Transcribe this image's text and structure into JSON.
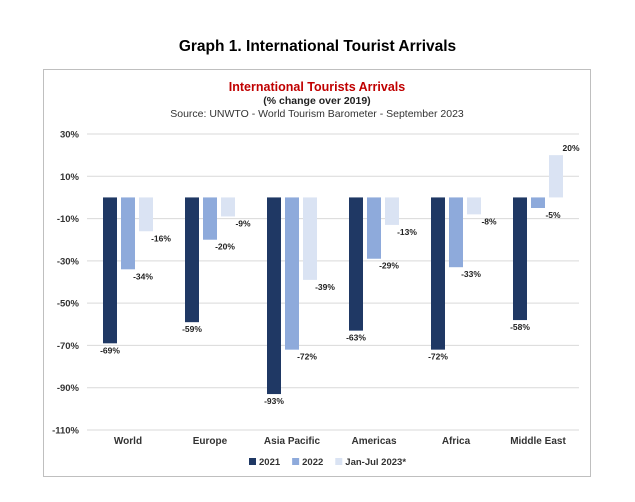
{
  "page": {
    "heading": "Graph 1. International Tourist Arrivals"
  },
  "chart_data": {
    "type": "bar",
    "title": "International Tourists Arrivals",
    "subtitle": "(% change over 2019)",
    "source": "Source: UNWTO - World Tourism Barometer - September 2023",
    "categories": [
      "World",
      "Europe",
      "Asia Pacific",
      "Americas",
      "Africa",
      "Middle East"
    ],
    "series": [
      {
        "name": "2021",
        "color": "#1f3864",
        "values": [
          -69,
          -59,
          -93,
          -63,
          -72,
          -58
        ]
      },
      {
        "name": "2022",
        "color": "#8eaadb",
        "values": [
          -34,
          -20,
          -72,
          -29,
          -33,
          -5
        ]
      },
      {
        "name": "Jan-Jul 2023*",
        "color": "#dae3f3",
        "values": [
          -16,
          -9,
          -39,
          -13,
          -8,
          20
        ]
      }
    ],
    "ylim": [
      -110,
      30
    ],
    "yticks": [
      30,
      10,
      -10,
      -30,
      -50,
      -70,
      -90,
      -110
    ],
    "tick_suffix": "%",
    "grid": true,
    "legend": "bottom",
    "title_color": "#c00000"
  }
}
